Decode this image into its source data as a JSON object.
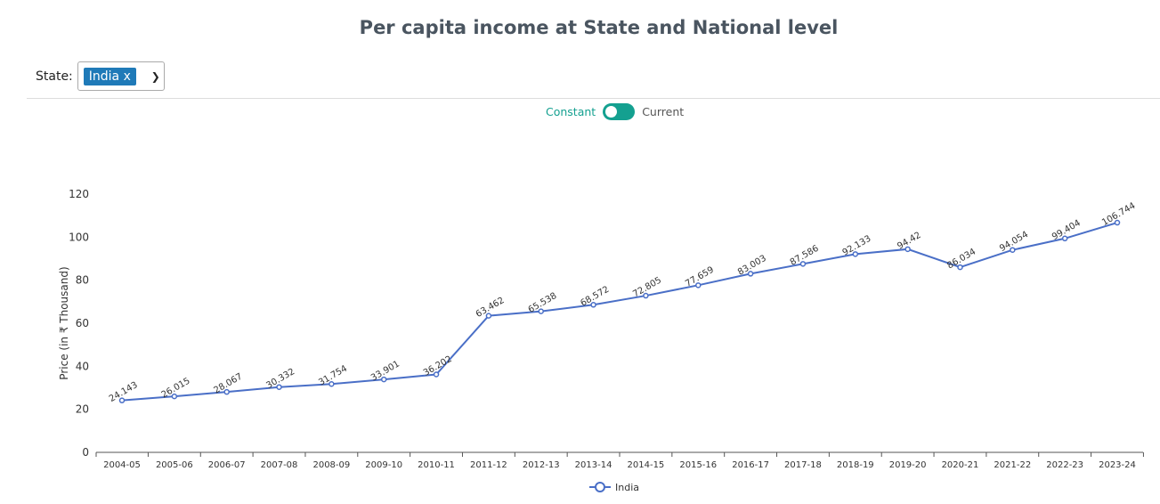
{
  "title": "Per capita income at State and National level",
  "filter": {
    "label": "State:",
    "selected": "India x"
  },
  "toggle": {
    "left": "Constant",
    "right": "Current"
  },
  "colors": {
    "series": "#4a6fc7",
    "toggle": "#14a090",
    "tag": "#1f7ab8"
  },
  "chart_data": {
    "type": "line",
    "title": "Per capita income at State and National level",
    "ylabel": "Price (in ₹ Thousand)",
    "xlabel": "",
    "ylim": [
      0,
      120
    ],
    "yticks": [
      0,
      20,
      40,
      60,
      80,
      100,
      120
    ],
    "grid": false,
    "legend": "bottom",
    "categories": [
      "2004-05",
      "2005-06",
      "2006-07",
      "2007-08",
      "2008-09",
      "2009-10",
      "2010-11",
      "2011-12",
      "2012-13",
      "2013-14",
      "2014-15",
      "2015-16",
      "2016-17",
      "2017-18",
      "2018-19",
      "2019-20",
      "2020-21",
      "2021-22",
      "2022-23",
      "2023-24"
    ],
    "series": [
      {
        "name": "India",
        "values": [
          24.143,
          26.015,
          28.067,
          30.332,
          31.754,
          33.901,
          36.202,
          63.462,
          65.538,
          68.572,
          72.805,
          77.659,
          83.003,
          87.586,
          92.133,
          94.42,
          86.034,
          94.054,
          99.404,
          106.744
        ]
      }
    ]
  }
}
